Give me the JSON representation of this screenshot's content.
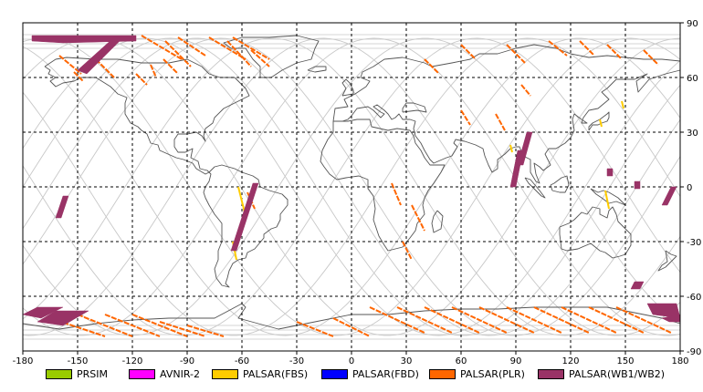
{
  "chart_data": {
    "type": "map",
    "projection": "equirectangular",
    "xlim": [
      -180,
      180
    ],
    "ylim": [
      -90,
      90
    ],
    "grid": true,
    "x_ticks": [
      -180,
      -150,
      -120,
      -90,
      -60,
      -30,
      0,
      30,
      60,
      90,
      120,
      150,
      180
    ],
    "x_tick_labels": [
      "-180",
      "-150",
      "-120",
      "-90",
      "-60",
      "-30",
      "0",
      "30",
      "60",
      "90",
      "120",
      "150",
      "180"
    ],
    "y_ticks": [
      90,
      60,
      30,
      0,
      -30,
      -60,
      -90
    ],
    "y_tick_labels": [
      "90",
      "60",
      "30",
      "0",
      "-30",
      "-60",
      "-90"
    ],
    "legend_placement": "bottom",
    "legend": [
      {
        "label": "PRSIM",
        "color": "#99cc00"
      },
      {
        "label": "AVNIR-2",
        "color": "#ff00ff"
      },
      {
        "label": "PALSAR(FBS)",
        "color": "#ffcc00"
      },
      {
        "label": "PALSAR(FBD)",
        "color": "#0000ff"
      },
      {
        "label": "PALSAR(PLR)",
        "color": "#ff6600"
      },
      {
        "label": "PALSAR(WB1/WB2)",
        "color": "#993366"
      }
    ],
    "orbit_track_color": "#c8c8c8",
    "coastline_color": "#555555",
    "wb_swaths": [
      {
        "poly": [
          [
            -175,
            83
          ],
          [
            -118,
            83
          ],
          [
            -118,
            80
          ],
          [
            -158,
            79
          ],
          [
            -175,
            80
          ]
        ]
      },
      {
        "poly": [
          [
            -125,
            82
          ],
          [
            -130,
            82
          ],
          [
            -150,
            64
          ],
          [
            -145,
            62
          ]
        ]
      },
      {
        "poly": [
          [
            -155,
            -5
          ],
          [
            -158,
            -5
          ],
          [
            -162,
            -17
          ],
          [
            -159,
            -17
          ]
        ]
      },
      {
        "poly": [
          [
            -54,
            2
          ],
          [
            -51,
            2
          ],
          [
            -63,
            -35
          ],
          [
            -66,
            -35
          ]
        ]
      },
      {
        "poly": [
          [
            -172,
            -66
          ],
          [
            -158,
            -66
          ],
          [
            -170,
            -72
          ],
          [
            -180,
            -70
          ]
        ]
      },
      {
        "poly": [
          [
            -162,
            -68
          ],
          [
            -144,
            -68
          ],
          [
            -158,
            -76
          ],
          [
            -172,
            -74
          ]
        ]
      },
      {
        "poly": [
          [
            91,
            20
          ],
          [
            94,
            20
          ],
          [
            90,
            0
          ],
          [
            87,
            0
          ]
        ]
      },
      {
        "poly": [
          [
            96,
            30
          ],
          [
            99,
            30
          ],
          [
            94,
            12
          ],
          [
            91,
            12
          ]
        ]
      },
      {
        "poly": [
          [
            140,
            10
          ],
          [
            143,
            10
          ],
          [
            143,
            6
          ],
          [
            140,
            6
          ]
        ]
      },
      {
        "poly": [
          [
            155,
            3
          ],
          [
            158,
            3
          ],
          [
            158,
            -1
          ],
          [
            155,
            -1
          ]
        ]
      },
      {
        "poly": [
          [
            175,
            0
          ],
          [
            178,
            0
          ],
          [
            173,
            -10
          ],
          [
            170,
            -10
          ]
        ]
      },
      {
        "poly": [
          [
            155,
            -52
          ],
          [
            160,
            -52
          ],
          [
            158,
            -56
          ],
          [
            153,
            -56
          ]
        ]
      },
      {
        "poly": [
          [
            162,
            -64
          ],
          [
            178,
            -64
          ],
          [
            180,
            -72
          ],
          [
            165,
            -70
          ]
        ]
      },
      {
        "poly": [
          [
            170,
            -72
          ],
          [
            180,
            -70
          ],
          [
            180,
            -74
          ],
          [
            174,
            -74
          ]
        ]
      }
    ],
    "plr_segments": [
      [
        [
          -115,
          83
        ],
        [
          -93,
          70
        ]
      ],
      [
        [
          -102,
          80
        ],
        [
          -88,
          66
        ]
      ],
      [
        [
          -78,
          82
        ],
        [
          -58,
          70
        ]
      ],
      [
        [
          -68,
          80
        ],
        [
          -55,
          66
        ]
      ],
      [
        [
          -65,
          82
        ],
        [
          -45,
          70
        ]
      ],
      [
        [
          -55,
          75
        ],
        [
          -45,
          66
        ]
      ],
      [
        [
          -160,
          72
        ],
        [
          -148,
          62
        ]
      ],
      [
        [
          -140,
          70
        ],
        [
          -130,
          60
        ]
      ],
      [
        [
          -95,
          82
        ],
        [
          -80,
          72
        ]
      ],
      [
        [
          -103,
          70
        ],
        [
          -95,
          62
        ]
      ],
      [
        [
          10,
          -66
        ],
        [
          40,
          -80
        ]
      ],
      [
        [
          25,
          -66
        ],
        [
          55,
          -80
        ]
      ],
      [
        [
          40,
          -66
        ],
        [
          70,
          -80
        ]
      ],
      [
        [
          55,
          -66
        ],
        [
          85,
          -80
        ]
      ],
      [
        [
          70,
          -66
        ],
        [
          100,
          -80
        ]
      ],
      [
        [
          85,
          -66
        ],
        [
          115,
          -80
        ]
      ],
      [
        [
          100,
          -66
        ],
        [
          130,
          -80
        ]
      ],
      [
        [
          115,
          -66
        ],
        [
          145,
          -80
        ]
      ],
      [
        [
          130,
          -66
        ],
        [
          160,
          -80
        ]
      ],
      [
        [
          145,
          -66
        ],
        [
          175,
          -80
        ]
      ],
      [
        [
          -120,
          -70
        ],
        [
          -90,
          -82
        ]
      ],
      [
        [
          -135,
          -70
        ],
        [
          -105,
          -82
        ]
      ],
      [
        [
          -150,
          -70
        ],
        [
          -120,
          -82
        ]
      ],
      [
        [
          -165,
          -72
        ],
        [
          -135,
          -82
        ]
      ],
      [
        [
          -105,
          -74
        ],
        [
          -80,
          -82
        ]
      ],
      [
        [
          -90,
          -76
        ],
        [
          -70,
          -82
        ]
      ],
      [
        [
          -10,
          -72
        ],
        [
          10,
          -82
        ]
      ],
      [
        [
          -30,
          -74
        ],
        [
          -10,
          -82
        ]
      ],
      [
        [
          108,
          80
        ],
        [
          118,
          72
        ]
      ],
      [
        [
          125,
          80
        ],
        [
          133,
          72
        ]
      ],
      [
        [
          140,
          78
        ],
        [
          148,
          70
        ]
      ],
      [
        [
          160,
          75
        ],
        [
          168,
          67
        ]
      ],
      [
        [
          85,
          78
        ],
        [
          95,
          68
        ]
      ],
      [
        [
          60,
          78
        ],
        [
          68,
          70
        ]
      ],
      [
        [
          40,
          70
        ],
        [
          48,
          62
        ]
      ],
      [
        [
          93,
          56
        ],
        [
          98,
          50
        ]
      ],
      [
        [
          79,
          40
        ],
        [
          84,
          31
        ]
      ],
      [
        [
          60,
          42
        ],
        [
          65,
          34
        ]
      ],
      [
        [
          33,
          -10
        ],
        [
          40,
          -24
        ]
      ],
      [
        [
          22,
          2
        ],
        [
          27,
          -10
        ]
      ],
      [
        [
          28,
          -30
        ],
        [
          33,
          -40
        ]
      ],
      [
        [
          -57,
          -3
        ],
        [
          -53,
          -12
        ]
      ],
      [
        [
          -118,
          62
        ],
        [
          -112,
          56
        ]
      ],
      [
        [
          -152,
          63
        ],
        [
          -147,
          58
        ]
      ],
      [
        [
          -110,
          67
        ],
        [
          -107,
          60
        ]
      ]
    ],
    "fbs_segments": [
      [
        [
          -62,
          0
        ],
        [
          -58,
          -16
        ]
      ],
      [
        [
          -65,
          -30
        ],
        [
          -63,
          -40
        ]
      ],
      [
        [
          148,
          47
        ],
        [
          149,
          43
        ]
      ],
      [
        [
          139,
          -2
        ],
        [
          141,
          -12
        ]
      ],
      [
        [
          87,
          23
        ],
        [
          88,
          19
        ]
      ],
      [
        [
          136,
          37
        ],
        [
          137,
          33
        ]
      ]
    ]
  }
}
